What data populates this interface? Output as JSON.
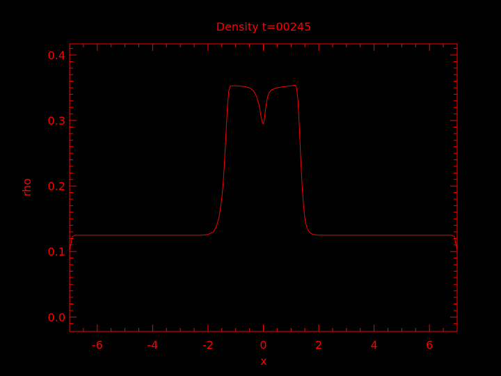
{
  "chart_data": {
    "type": "line",
    "title": "Density t=00245",
    "xlabel": "x",
    "ylabel": "rho",
    "xlim": [
      -7,
      7
    ],
    "ylim": [
      -0.022,
      0.417
    ],
    "xticks": [
      -6,
      -4,
      -2,
      0,
      2,
      4,
      6
    ],
    "yticks": [
      0.0,
      0.1,
      0.2,
      0.3,
      0.4
    ],
    "xtick_labels": [
      "-6",
      "-4",
      "-2",
      "0",
      "2",
      "4",
      "6"
    ],
    "ytick_labels": [
      "0.0",
      "0.1",
      "0.2",
      "0.3",
      "0.4"
    ],
    "grid": false,
    "color": "#ff0000",
    "background": "#000000",
    "series": [
      {
        "x": [
          -7.0,
          -6.9,
          -6.8,
          -3.0,
          -2.2,
          -2.0,
          -1.8,
          -1.7,
          -1.6,
          -1.5,
          -1.45,
          -1.4,
          -1.35,
          -1.3,
          -1.25,
          -1.2,
          -1.15,
          -1.1,
          -1.0,
          -0.7,
          -0.5,
          -0.35,
          -0.25,
          -0.15,
          -0.08,
          -0.03,
          0.0,
          0.03,
          0.08,
          0.15,
          0.2,
          0.3,
          0.5,
          0.8,
          1.0,
          1.15,
          1.2,
          1.25,
          1.3,
          1.35,
          1.4,
          1.45,
          1.5,
          1.55,
          1.6,
          1.7,
          1.8,
          2.0,
          2.2,
          3.0,
          6.8,
          6.9,
          7.0
        ],
        "y": [
          0.102,
          0.123,
          0.125,
          0.125,
          0.125,
          0.126,
          0.13,
          0.138,
          0.152,
          0.182,
          0.205,
          0.24,
          0.28,
          0.32,
          0.345,
          0.352,
          0.353,
          0.353,
          0.353,
          0.352,
          0.35,
          0.345,
          0.337,
          0.323,
          0.305,
          0.296,
          0.295,
          0.3,
          0.318,
          0.336,
          0.342,
          0.347,
          0.35,
          0.352,
          0.353,
          0.354,
          0.35,
          0.33,
          0.29,
          0.24,
          0.2,
          0.17,
          0.15,
          0.14,
          0.133,
          0.128,
          0.126,
          0.125,
          0.125,
          0.125,
          0.125,
          0.123,
          0.102
        ]
      }
    ]
  }
}
